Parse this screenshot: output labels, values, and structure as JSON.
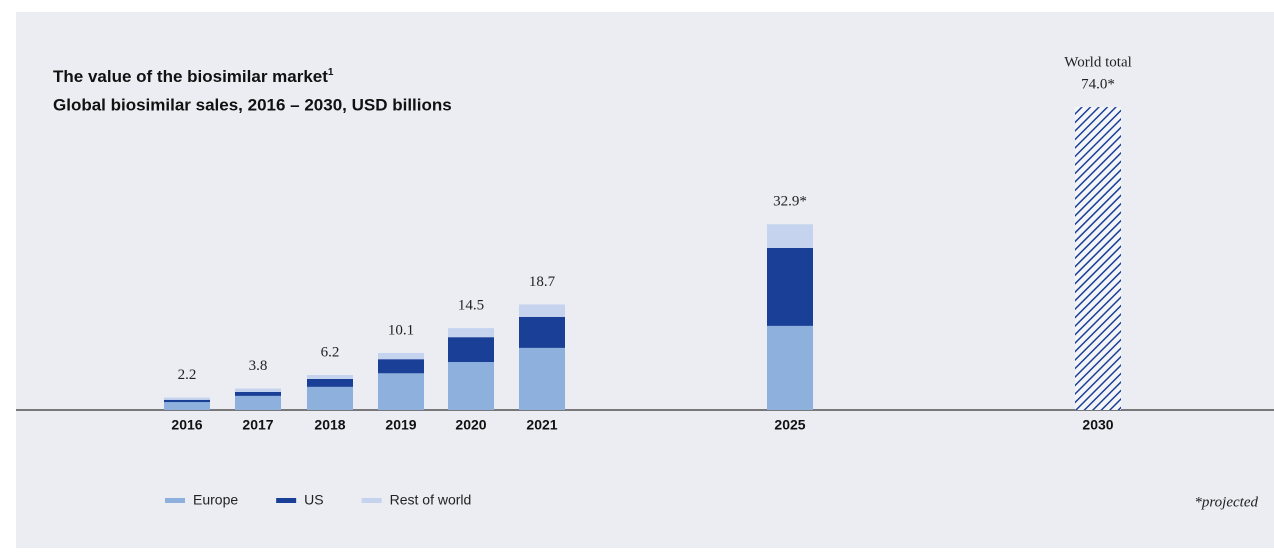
{
  "chart_data": {
    "type": "stacked_bar",
    "title": "The value of the biosimilar market",
    "title_footnote_marker": "1",
    "subtitle": "Global biosimilar sales, 2016 – 2030, USD billions",
    "categories": [
      "2016",
      "2017",
      "2018",
      "2019",
      "2020",
      "2021",
      "2025",
      "2030"
    ],
    "series": [
      {
        "name": "Europe",
        "color": "#8eb0dc",
        "values": [
          1.4,
          2.5,
          4.1,
          6.5,
          8.5,
          11.0,
          14.9,
          null
        ]
      },
      {
        "name": "US",
        "color": "#1a3f96",
        "values": [
          0.4,
          0.7,
          1.4,
          2.5,
          4.4,
          5.5,
          13.8,
          null
        ]
      },
      {
        "name": "Rest of world",
        "color": "#c5d3ee",
        "values": [
          0.4,
          0.6,
          0.7,
          1.1,
          1.6,
          2.2,
          4.2,
          null
        ]
      },
      {
        "name": "World total",
        "color": "#1a3f96",
        "hatched": true,
        "axis": "y2",
        "values": [
          null,
          null,
          null,
          null,
          null,
          null,
          null,
          74.0
        ]
      }
    ],
    "totals": {
      "values": [
        2.2,
        3.8,
        6.2,
        10.1,
        14.5,
        18.7,
        32.9,
        74.0
      ],
      "value_labels": [
        "2.2",
        "3.8",
        "6.2",
        "10.1",
        "14.5",
        "18.7",
        "32.9*",
        "74.0*"
      ]
    },
    "ylim": [
      0,
      62
    ],
    "y2lim": [
      0,
      85.5
    ],
    "footnote": "*projected"
  }
}
